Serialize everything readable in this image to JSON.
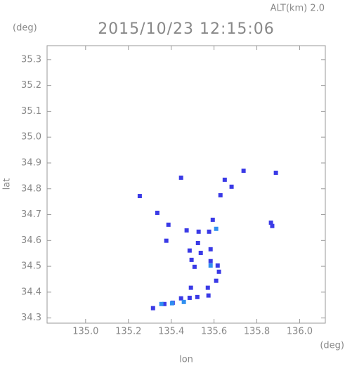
{
  "chart_data": {
    "type": "scatter",
    "title": "2015/10/23 12:15:06",
    "subtitle": "ALT(km) 2.0",
    "y_unit": "(deg)",
    "x_unit": "(deg)",
    "xlabel": "lon",
    "ylabel": "lat",
    "xlim": [
      134.82,
      136.12
    ],
    "ylim": [
      34.28,
      35.354
    ],
    "xticks": [
      {
        "value": 135,
        "label": "135.0"
      },
      135.2,
      135.4,
      135.6,
      135.8,
      {
        "value": 136,
        "label": "136.0"
      }
    ],
    "yticks": [
      34.3,
      34.4,
      34.5,
      34.6,
      34.7,
      34.8,
      34.9,
      {
        "value": 35,
        "label": "35.0"
      },
      35.1,
      35.2,
      35.3
    ],
    "series": [
      {
        "color": "#3a3ae6",
        "x": [
          135.253,
          135.446,
          135.335,
          135.387,
          135.472,
          135.528,
          135.577,
          135.594,
          135.486,
          135.495,
          135.509,
          135.538,
          135.584,
          135.617,
          135.623,
          135.61,
          135.571,
          135.492,
          135.522,
          135.574,
          135.486,
          135.446,
          135.407,
          135.368,
          135.315,
          135.682,
          135.738,
          135.65,
          135.63,
          135.889,
          135.866,
          135.872,
          135.377,
          135.584,
          135.525
        ],
        "y": [
          34.772,
          34.843,
          34.707,
          34.661,
          34.639,
          34.634,
          34.634,
          34.68,
          34.561,
          34.525,
          34.498,
          34.552,
          34.566,
          34.503,
          34.479,
          34.444,
          34.417,
          34.417,
          34.381,
          34.387,
          34.378,
          34.376,
          34.359,
          34.354,
          34.338,
          34.808,
          34.87,
          34.835,
          34.775,
          34.862,
          34.669,
          34.656,
          34.599,
          34.52,
          34.59
        ]
      },
      {
        "color": "#2f8ff0",
        "x": [
          135.354,
          135.404,
          135.459,
          135.584,
          135.61
        ],
        "y": [
          34.354,
          34.357,
          34.362,
          34.503,
          34.645
        ]
      }
    ]
  }
}
